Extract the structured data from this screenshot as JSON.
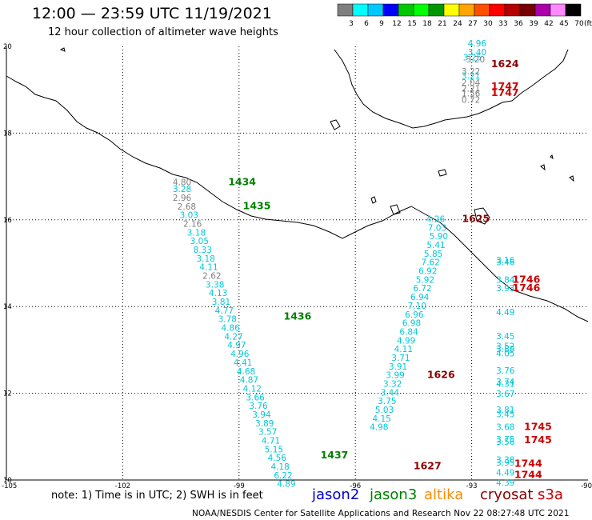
{
  "header": {
    "title": "12:00 — 23:59 UTC 11/19/2021",
    "subtitle": "12 hour collection of altimeter wave heights"
  },
  "colorbar": {
    "labels": [
      "3",
      "6",
      "9",
      "12",
      "15",
      "18",
      "21",
      "24",
      "27",
      "30",
      "33",
      "36",
      "39",
      "42",
      "45",
      "70",
      "(ft)"
    ],
    "colors": [
      "#7f7f7f",
      "#00ffff",
      "#00c8ff",
      "#0000ff",
      "#00c800",
      "#00ff00",
      "#009600",
      "#ffff00",
      "#ffa500",
      "#ff5000",
      "#ff0000",
      "#b40000",
      "#780000",
      "#aa00aa",
      "#ff88ff",
      "#000000"
    ]
  },
  "axes": {
    "lon_ticks": [
      "-105",
      "-102",
      "-99",
      "-96",
      "-93",
      "-90"
    ],
    "lat_ticks": [
      "20",
      "18",
      "16",
      "14",
      "12",
      "10"
    ]
  },
  "passes": [
    {
      "satellite": "jason3",
      "color": "#008000",
      "label": "1434",
      "lon": -99.28,
      "lat": 16.8
    },
    {
      "satellite": "jason3",
      "color": "#008000",
      "label": "1435",
      "lon": -98.9,
      "lat": 16.25
    },
    {
      "satellite": "jason3",
      "color": "#008000",
      "label": "1436",
      "lon": -97.85,
      "lat": 13.7
    },
    {
      "satellite": "jason3",
      "color": "#008000",
      "label": "1437",
      "lon": -96.9,
      "lat": 10.5
    },
    {
      "satellite": "cryosat",
      "color": "#8b0000",
      "label": "1625",
      "lon": -93.25,
      "lat": 15.95
    },
    {
      "satellite": "cryosat",
      "color": "#8b0000",
      "label": "1626",
      "lon": -94.15,
      "lat": 12.35
    },
    {
      "satellite": "cryosat",
      "color": "#8b0000",
      "label": "1627",
      "lon": -94.5,
      "lat": 10.25
    },
    {
      "satellite": "cryosat",
      "color": "#8b0000",
      "label": "1624",
      "lon": -92.5,
      "lat": 19.52
    },
    {
      "satellite": "s3a",
      "color": "#cc0000",
      "label": "1747",
      "lon": -92.5,
      "lat": 19.0
    },
    {
      "satellite": "s3a",
      "color": "#cc0000",
      "label": "1747",
      "lon": -92.5,
      "lat": 18.86
    },
    {
      "satellite": "s3a",
      "color": "#cc0000",
      "label": "1746",
      "lon": -91.95,
      "lat": 14.55
    },
    {
      "satellite": "s3a",
      "color": "#cc0000",
      "label": "1746",
      "lon": -91.95,
      "lat": 14.35
    },
    {
      "satellite": "s3a",
      "color": "#cc0000",
      "label": "1745",
      "lon": -91.65,
      "lat": 11.15
    },
    {
      "satellite": "s3a",
      "color": "#cc0000",
      "label": "1745",
      "lon": -91.65,
      "lat": 10.85
    },
    {
      "satellite": "s3a",
      "color": "#cc0000",
      "label": "1744",
      "lon": -91.9,
      "lat": 10.3
    },
    {
      "satellite": "s3a",
      "color": "#cc0000",
      "label": "1744",
      "lon": -91.9,
      "lat": 10.05
    }
  ],
  "swh": [
    {
      "v": "4.80",
      "c": "#7f7f7f",
      "lon": -100.47,
      "lat": 16.8
    },
    {
      "v": "3.28",
      "c": "#00c8d8",
      "lon": -100.47,
      "lat": 16.64
    },
    {
      "v": "2.96",
      "c": "#7f7f7f",
      "lon": -100.47,
      "lat": 16.44
    },
    {
      "v": "2.68",
      "c": "#7f7f7f",
      "lon": -100.35,
      "lat": 16.24
    },
    {
      "v": "3.03",
      "c": "#00c8d8",
      "lon": -100.29,
      "lat": 16.04
    },
    {
      "v": "2.16",
      "c": "#7f7f7f",
      "lon": -100.2,
      "lat": 15.84
    },
    {
      "v": "3.18",
      "c": "#00c8d8",
      "lon": -100.1,
      "lat": 15.64
    },
    {
      "v": "3.05",
      "c": "#00c8d8",
      "lon": -100.02,
      "lat": 15.44
    },
    {
      "v": "8.33",
      "c": "#00c8d8",
      "lon": -99.94,
      "lat": 15.24
    },
    {
      "v": "3.18",
      "c": "#00c8d8",
      "lon": -99.86,
      "lat": 15.04
    },
    {
      "v": "4.11",
      "c": "#00c8d8",
      "lon": -99.78,
      "lat": 14.84
    },
    {
      "v": "2.62",
      "c": "#7f7f7f",
      "lon": -99.7,
      "lat": 14.64
    },
    {
      "v": "3.38",
      "c": "#00c8d8",
      "lon": -99.62,
      "lat": 14.44
    },
    {
      "v": "4.13",
      "c": "#00c8d8",
      "lon": -99.54,
      "lat": 14.24
    },
    {
      "v": "3.81",
      "c": "#00c8d8",
      "lon": -99.46,
      "lat": 14.04
    },
    {
      "v": "4.77",
      "c": "#00c8d8",
      "lon": -99.38,
      "lat": 13.84
    },
    {
      "v": "3.78",
      "c": "#00c8d8",
      "lon": -99.3,
      "lat": 13.64
    },
    {
      "v": "4.86",
      "c": "#00c8d8",
      "lon": -99.22,
      "lat": 13.44
    },
    {
      "v": "4.27",
      "c": "#00c8d8",
      "lon": -99.14,
      "lat": 13.24
    },
    {
      "v": "4.97",
      "c": "#00c8d8",
      "lon": -99.06,
      "lat": 13.04
    },
    {
      "v": "4.96",
      "c": "#00c8d8",
      "lon": -98.98,
      "lat": 12.84
    },
    {
      "v": "4.41",
      "c": "#00c8d8",
      "lon": -98.9,
      "lat": 12.64
    },
    {
      "v": "4.68",
      "c": "#00c8d8",
      "lon": -98.82,
      "lat": 12.44
    },
    {
      "v": "4.87",
      "c": "#00c8d8",
      "lon": -98.74,
      "lat": 12.24
    },
    {
      "v": "4.12",
      "c": "#00c8d8",
      "lon": -98.66,
      "lat": 12.04
    },
    {
      "v": "3.66",
      "c": "#00c8d8",
      "lon": -98.58,
      "lat": 11.84
    },
    {
      "v": "3.76",
      "c": "#00c8d8",
      "lon": -98.5,
      "lat": 11.64
    },
    {
      "v": "3.94",
      "c": "#00c8d8",
      "lon": -98.42,
      "lat": 11.44
    },
    {
      "v": "3.89",
      "c": "#00c8d8",
      "lon": -98.34,
      "lat": 11.24
    },
    {
      "v": "3.57",
      "c": "#00c8d8",
      "lon": -98.26,
      "lat": 11.04
    },
    {
      "v": "4.71",
      "c": "#00c8d8",
      "lon": -98.18,
      "lat": 10.84
    },
    {
      "v": "5.15",
      "c": "#00c8d8",
      "lon": -98.1,
      "lat": 10.64
    },
    {
      "v": "4.56",
      "c": "#00c8d8",
      "lon": -98.02,
      "lat": 10.44
    },
    {
      "v": "4.18",
      "c": "#00c8d8",
      "lon": -97.94,
      "lat": 10.24
    },
    {
      "v": "6.22",
      "c": "#00c8d8",
      "lon": -97.86,
      "lat": 10.04
    },
    {
      "v": "4.89",
      "c": "#00c8d8",
      "lon": -97.78,
      "lat": 9.84
    },
    {
      "v": "4.26",
      "c": "#00c8d8",
      "lon": -93.93,
      "lat": 15.95
    },
    {
      "v": "7.03",
      "c": "#00c8d8",
      "lon": -93.89,
      "lat": 15.75
    },
    {
      "v": "5.90",
      "c": "#00c8d8",
      "lon": -93.85,
      "lat": 15.55
    },
    {
      "v": "5.41",
      "c": "#00c8d8",
      "lon": -93.92,
      "lat": 15.35
    },
    {
      "v": "5.85",
      "c": "#00c8d8",
      "lon": -93.99,
      "lat": 15.15
    },
    {
      "v": "7.62",
      "c": "#00c8d8",
      "lon": -94.06,
      "lat": 14.95
    },
    {
      "v": "6.92",
      "c": "#00c8d8",
      "lon": -94.13,
      "lat": 14.75
    },
    {
      "v": "5.92",
      "c": "#00c8d8",
      "lon": -94.2,
      "lat": 14.55
    },
    {
      "v": "6.72",
      "c": "#00c8d8",
      "lon": -94.27,
      "lat": 14.35
    },
    {
      "v": "6.94",
      "c": "#00c8d8",
      "lon": -94.34,
      "lat": 14.15
    },
    {
      "v": "7.10",
      "c": "#00c8d8",
      "lon": -94.41,
      "lat": 13.95
    },
    {
      "v": "6.96",
      "c": "#00c8d8",
      "lon": -94.48,
      "lat": 13.75
    },
    {
      "v": "6.98",
      "c": "#00c8d8",
      "lon": -94.55,
      "lat": 13.55
    },
    {
      "v": "6.84",
      "c": "#00c8d8",
      "lon": -94.62,
      "lat": 13.35
    },
    {
      "v": "4.99",
      "c": "#00c8d8",
      "lon": -94.69,
      "lat": 13.15
    },
    {
      "v": "4.11",
      "c": "#00c8d8",
      "lon": -94.76,
      "lat": 12.95
    },
    {
      "v": "3.71",
      "c": "#00c8d8",
      "lon": -94.83,
      "lat": 12.75
    },
    {
      "v": "3.91",
      "c": "#00c8d8",
      "lon": -94.9,
      "lat": 12.55
    },
    {
      "v": "3.99",
      "c": "#00c8d8",
      "lon": -94.97,
      "lat": 12.35
    },
    {
      "v": "3.32",
      "c": "#00c8d8",
      "lon": -95.04,
      "lat": 12.15
    },
    {
      "v": "3.44",
      "c": "#00c8d8",
      "lon": -95.11,
      "lat": 11.95
    },
    {
      "v": "3.75",
      "c": "#00c8d8",
      "lon": -95.18,
      "lat": 11.75
    },
    {
      "v": "5.03",
      "c": "#00c8d8",
      "lon": -95.25,
      "lat": 11.55
    },
    {
      "v": "4.15",
      "c": "#00c8d8",
      "lon": -95.32,
      "lat": 11.35
    },
    {
      "v": "4.98",
      "c": "#00c8d8",
      "lon": -95.39,
      "lat": 11.15
    },
    {
      "v": "4.96",
      "c": "#00c8d8",
      "lon": -92.86,
      "lat": 20.0
    },
    {
      "v": "3.40",
      "c": "#00c8d8",
      "lon": -92.86,
      "lat": 19.8
    },
    {
      "v": "3.25",
      "c": "#00c8d8",
      "lon": -92.98,
      "lat": 19.68
    },
    {
      "v": "3.20",
      "c": "#7f7f7f",
      "lon": -92.9,
      "lat": 19.63
    },
    {
      "v": "3.22",
      "c": "#7f7f7f",
      "lon": -93.02,
      "lat": 19.35
    },
    {
      "v": "3.21",
      "c": "#00c8d8",
      "lon": -93.02,
      "lat": 19.25
    },
    {
      "v": "2.04",
      "c": "#7f7f7f",
      "lon": -93.02,
      "lat": 19.1
    },
    {
      "v": "2.21",
      "c": "#7f7f7f",
      "lon": -93.02,
      "lat": 18.96
    },
    {
      "v": "1.56",
      "c": "#7f7f7f",
      "lon": -93.02,
      "lat": 18.85
    },
    {
      "v": "0.72",
      "c": "#7f7f7f",
      "lon": -93.02,
      "lat": 18.7
    },
    {
      "v": "3.16",
      "c": "#00c8d8",
      "lon": -92.13,
      "lat": 15.0
    },
    {
      "v": "3.46",
      "c": "#00c8d8",
      "lon": -92.13,
      "lat": 14.95
    },
    {
      "v": "3.84",
      "c": "#00c8d8",
      "lon": -92.13,
      "lat": 14.55
    },
    {
      "v": "3.93",
      "c": "#00c8d8",
      "lon": -92.13,
      "lat": 14.35
    },
    {
      "v": "4.49",
      "c": "#00c8d8",
      "lon": -92.13,
      "lat": 13.8
    },
    {
      "v": "3.45",
      "c": "#00c8d8",
      "lon": -92.13,
      "lat": 13.25
    },
    {
      "v": "3.52",
      "c": "#00c8d8",
      "lon": -92.13,
      "lat": 13.02
    },
    {
      "v": "3.80",
      "c": "#00c8d8",
      "lon": -92.13,
      "lat": 12.95
    },
    {
      "v": "4.05",
      "c": "#00c8d8",
      "lon": -92.13,
      "lat": 12.85
    },
    {
      "v": "3.76",
      "c": "#00c8d8",
      "lon": -92.13,
      "lat": 12.45
    },
    {
      "v": "3.74",
      "c": "#00c8d8",
      "lon": -92.13,
      "lat": 12.2
    },
    {
      "v": "4.31",
      "c": "#00c8d8",
      "lon": -92.13,
      "lat": 12.15
    },
    {
      "v": "3.67",
      "c": "#00c8d8",
      "lon": -92.13,
      "lat": 11.92
    },
    {
      "v": "3.81",
      "c": "#00c8d8",
      "lon": -92.13,
      "lat": 11.55
    },
    {
      "v": "3.45",
      "c": "#00c8d8",
      "lon": -92.13,
      "lat": 11.45
    },
    {
      "v": "3.68",
      "c": "#00c8d8",
      "lon": -92.13,
      "lat": 11.15
    },
    {
      "v": "3.75",
      "c": "#00c8d8",
      "lon": -92.13,
      "lat": 10.87
    },
    {
      "v": "3.56",
      "c": "#00c8d8",
      "lon": -92.13,
      "lat": 10.81
    },
    {
      "v": "3.38",
      "c": "#00c8d8",
      "lon": -92.13,
      "lat": 10.4
    },
    {
      "v": "3.95",
      "c": "#00c8d8",
      "lon": -92.13,
      "lat": 10.33
    },
    {
      "v": "4.49",
      "c": "#00c8d8",
      "lon": -92.13,
      "lat": 10.1
    },
    {
      "v": "4.39",
      "c": "#00c8d8",
      "lon": -92.13,
      "lat": 9.87
    }
  ],
  "legend": {
    "note": "note: 1) Time is in UTC; 2) SWH is in feet",
    "satellites": [
      {
        "name": "jason2",
        "color": "#0000cc"
      },
      {
        "name": "jason3",
        "color": "#008000"
      },
      {
        "name": "altika",
        "color": "#ff8c00"
      },
      {
        "name": "cryosat",
        "color": "#8b0000"
      },
      {
        "name": "s3a",
        "color": "#cc0000"
      }
    ]
  },
  "footer": "NOAA/NESDIS Center for Satellite Applications and Research    Nov 22 08:27:48 UTC 2021"
}
